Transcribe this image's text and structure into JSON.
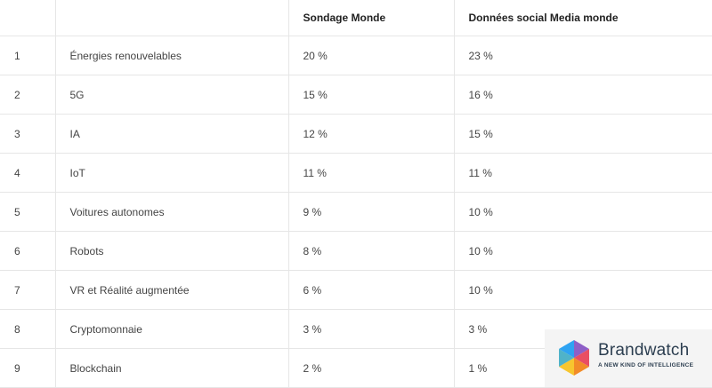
{
  "table": {
    "headers": [
      "",
      "",
      "Sondage Monde",
      "Données social Media monde"
    ],
    "rows": [
      [
        "1",
        "Énergies renouvelables",
        "20 %",
        "23 %"
      ],
      [
        "2",
        "5G",
        "15 %",
        "16 %"
      ],
      [
        "3",
        "IA",
        "12 %",
        "15 %"
      ],
      [
        "4",
        "IoT",
        "11 %",
        "11 %"
      ],
      [
        "5",
        "Voitures autonomes",
        "9 %",
        "10 %"
      ],
      [
        "6",
        "Robots",
        "8 %",
        "10 %"
      ],
      [
        "7",
        "VR et Réalité augmentée",
        "6 %",
        "10 %"
      ],
      [
        "8",
        "Cryptomonnaie",
        "3 %",
        "3 %"
      ],
      [
        "9",
        "Blockchain",
        "2 %",
        "1 %"
      ]
    ]
  },
  "logo": {
    "name": "Brandwatch",
    "tagline": "A NEW KIND OF INTELLIGENCE",
    "colors": [
      "#2ea3f2",
      "#8e5fc7",
      "#e94e63",
      "#f28c28",
      "#f7c62f",
      "#6cc24a"
    ]
  }
}
